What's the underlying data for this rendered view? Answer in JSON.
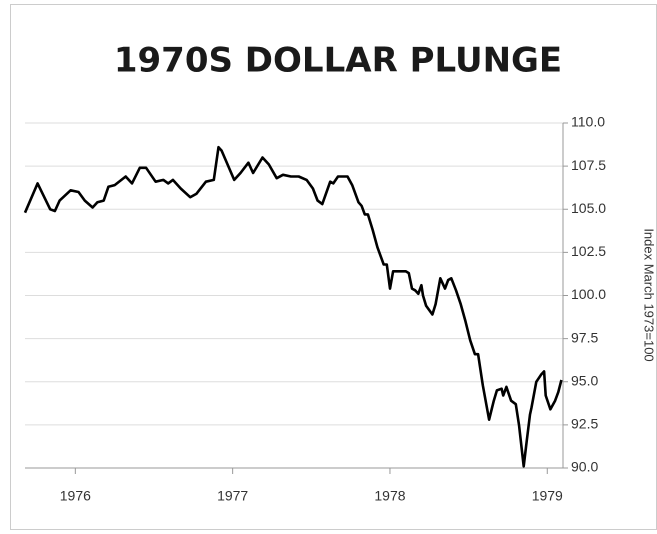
{
  "chart_data": {
    "type": "line",
    "title": "1970S DOLLAR PLUNGE",
    "y_axis_label": "Index March 1973=100",
    "color": "#000000",
    "grid": true,
    "xlim": [
      1975.68,
      1979.1
    ],
    "xticks": [
      1976,
      1977,
      1978,
      1979
    ],
    "ylim": [
      90,
      110
    ],
    "yticks": [
      {
        "value": 110,
        "label": "110.0"
      },
      107.5,
      {
        "value": 105,
        "label": "105.0"
      },
      102.5,
      {
        "value": 100,
        "label": "100.0"
      },
      97.5,
      {
        "value": 95,
        "label": "95.0"
      },
      92.5,
      {
        "value": 90,
        "label": "90.0"
      }
    ],
    "x": [
      1975.68,
      1975.76,
      1975.84,
      1975.87,
      1975.9,
      1975.97,
      1976.02,
      1976.06,
      1976.11,
      1976.14,
      1976.18,
      1976.21,
      1976.25,
      1976.32,
      1976.36,
      1976.41,
      1976.45,
      1976.51,
      1976.56,
      1976.59,
      1976.62,
      1976.67,
      1976.73,
      1976.77,
      1976.83,
      1976.88,
      1976.91,
      1976.93,
      1977.01,
      1977.05,
      1977.1,
      1977.13,
      1977.19,
      1977.23,
      1977.28,
      1977.32,
      1977.37,
      1977.42,
      1977.47,
      1977.51,
      1977.54,
      1977.57,
      1977.62,
      1977.64,
      1977.67,
      1977.73,
      1977.76,
      1977.8,
      1977.82,
      1977.84,
      1977.86,
      1977.89,
      1977.92,
      1977.96,
      1977.98,
      1978.0,
      1978.02,
      1978.06,
      1978.1,
      1978.12,
      1978.14,
      1978.16,
      1978.18,
      1978.2,
      1978.21,
      1978.23,
      1978.27,
      1978.29,
      1978.32,
      1978.35,
      1978.37,
      1978.39,
      1978.42,
      1978.45,
      1978.48,
      1978.51,
      1978.54,
      1978.56,
      1978.59,
      1978.63,
      1978.66,
      1978.68,
      1978.71,
      1978.72,
      1978.74,
      1978.77,
      1978.8,
      1978.82,
      1978.85,
      1978.87,
      1978.89,
      1978.9,
      1978.93,
      1978.96,
      1978.98,
      1978.99,
      1979.02,
      1979.05,
      1979.07,
      1979.09
    ],
    "values": [
      104.8,
      106.5,
      105.0,
      104.9,
      105.5,
      106.1,
      106.0,
      105.5,
      105.1,
      105.4,
      105.5,
      106.3,
      106.4,
      106.9,
      106.5,
      107.4,
      107.4,
      106.6,
      106.7,
      106.5,
      106.7,
      106.2,
      105.7,
      105.9,
      106.6,
      106.7,
      108.6,
      108.4,
      106.7,
      107.1,
      107.7,
      107.1,
      108.0,
      107.6,
      106.8,
      107.0,
      106.9,
      106.9,
      106.7,
      106.2,
      105.5,
      105.3,
      106.6,
      106.5,
      106.9,
      106.9,
      106.4,
      105.4,
      105.2,
      104.7,
      104.7,
      103.8,
      102.8,
      101.8,
      101.8,
      100.4,
      101.4,
      101.4,
      101.4,
      101.3,
      100.4,
      100.3,
      100.1,
      100.6,
      100.0,
      99.4,
      98.9,
      99.5,
      101.0,
      100.4,
      100.9,
      101.0,
      100.3,
      99.5,
      98.5,
      97.4,
      96.6,
      96.6,
      94.8,
      92.8,
      93.9,
      94.5,
      94.6,
      94.2,
      94.7,
      93.9,
      93.7,
      92.5,
      90.1,
      91.6,
      93.1,
      93.5,
      95.0,
      95.4,
      95.6,
      94.2,
      93.4,
      93.9,
      94.4,
      95.1
    ]
  }
}
